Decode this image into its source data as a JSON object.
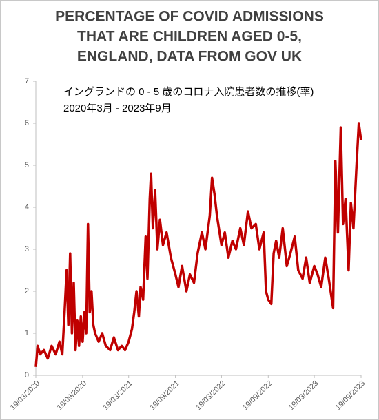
{
  "chart_data": {
    "type": "line",
    "title": [
      "PERCENTAGE OF COVID ADMISSIONS",
      "THAT ARE CHILDREN AGED 0-5,",
      "ENGLAND, DATA FROM GOV UK"
    ],
    "subtitle": [
      "イングランドの 0 - 5 歳のコロナ入院患者数の推移(率)",
      "2020年3月 - 2023年9月"
    ],
    "color": "#c00000",
    "x": [
      "19/03/2020",
      "26/03/2020",
      "05/04/2020",
      "20/04/2020",
      "05/05/2020",
      "20/05/2020",
      "05/06/2020",
      "20/06/2020",
      "01/07/2020",
      "10/07/2020",
      "18/07/2020",
      "25/07/2020",
      "01/08/2020",
      "08/08/2020",
      "15/08/2020",
      "22/08/2020",
      "29/08/2020",
      "05/09/2020",
      "12/09/2020",
      "19/09/2020",
      "26/09/2020",
      "03/10/2020",
      "10/10/2020",
      "17/10/2020",
      "24/10/2020",
      "31/10/2020",
      "07/11/2020",
      "21/11/2020",
      "05/12/2020",
      "19/12/2020",
      "05/01/2021",
      "20/01/2021",
      "05/02/2021",
      "20/02/2021",
      "05/03/2021",
      "19/03/2021",
      "01/04/2021",
      "10/04/2021",
      "19/04/2021",
      "28/04/2021",
      "05/05/2021",
      "15/05/2021",
      "25/05/2021",
      "01/06/2021",
      "10/06/2021",
      "15/06/2021",
      "22/06/2021",
      "01/07/2021",
      "10/07/2021",
      "20/07/2021",
      "01/08/2021",
      "15/08/2021",
      "01/09/2021",
      "19/09/2021",
      "01/10/2021",
      "15/10/2021",
      "01/11/2021",
      "15/11/2021",
      "01/12/2021",
      "15/12/2021",
      "01/01/2022",
      "15/01/2022",
      "01/02/2022",
      "10/02/2022",
      "20/02/2022",
      "01/03/2022",
      "19/03/2022",
      "01/04/2022",
      "15/04/2022",
      "01/05/2022",
      "15/05/2022",
      "01/06/2022",
      "15/06/2022",
      "01/07/2022",
      "15/07/2022",
      "01/08/2022",
      "15/08/2022",
      "01/09/2022",
      "10/09/2022",
      "19/09/2022",
      "01/10/2022",
      "10/10/2022",
      "20/10/2022",
      "01/11/2022",
      "15/11/2022",
      "01/12/2022",
      "15/12/2022",
      "01/01/2023",
      "15/01/2023",
      "01/02/2023",
      "15/02/2023",
      "01/03/2023",
      "19/03/2023",
      "01/04/2023",
      "15/04/2023",
      "01/05/2023",
      "15/05/2023",
      "01/06/2023",
      "10/06/2023",
      "20/06/2023",
      "01/07/2023",
      "10/07/2023",
      "20/07/2023",
      "01/08/2023",
      "10/08/2023",
      "20/08/2023",
      "01/09/2023",
      "10/09/2023",
      "19/09/2023"
    ],
    "values": [
      0.2,
      0.7,
      0.5,
      0.6,
      0.4,
      0.7,
      0.5,
      0.8,
      0.5,
      1.5,
      2.5,
      1.2,
      2.9,
      1.0,
      2.2,
      0.6,
      1.3,
      0.7,
      1.4,
      0.8,
      1.5,
      1.0,
      3.6,
      1.5,
      2.0,
      1.2,
      1.0,
      0.8,
      1.0,
      0.7,
      0.6,
      0.9,
      0.6,
      0.7,
      0.6,
      0.8,
      1.1,
      1.5,
      2.0,
      1.4,
      2.1,
      1.8,
      3.3,
      2.3,
      4.2,
      4.8,
      3.5,
      4.4,
      3.0,
      3.7,
      3.1,
      3.4,
      2.8,
      2.4,
      2.1,
      2.6,
      2.0,
      2.4,
      2.2,
      2.9,
      3.4,
      3.0,
      3.8,
      4.7,
      4.3,
      3.8,
      3.1,
      3.4,
      2.8,
      3.2,
      3.0,
      3.5,
      3.1,
      3.9,
      3.5,
      3.6,
      3.0,
      3.4,
      2.0,
      1.8,
      1.7,
      2.9,
      3.2,
      2.8,
      3.5,
      2.6,
      2.9,
      3.3,
      2.5,
      2.3,
      2.8,
      2.2,
      2.6,
      2.4,
      2.1,
      2.8,
      2.3,
      1.6,
      5.1,
      3.4,
      5.9,
      3.6,
      4.2,
      2.5,
      4.1,
      3.5,
      5.0,
      6.0,
      5.6
    ],
    "xlim": [
      "19/03/2020",
      "19/09/2023"
    ],
    "xticks": [
      "19/03/2020",
      "19/09/2020",
      "19/03/2021",
      "19/09/2021",
      "19/03/2022",
      "19/09/2022",
      "19/03/2023",
      "19/09/2023"
    ],
    "ylim": [
      0,
      7
    ],
    "yticks": [
      0,
      1,
      2,
      3,
      4,
      5,
      6,
      7
    ],
    "grid": false
  }
}
